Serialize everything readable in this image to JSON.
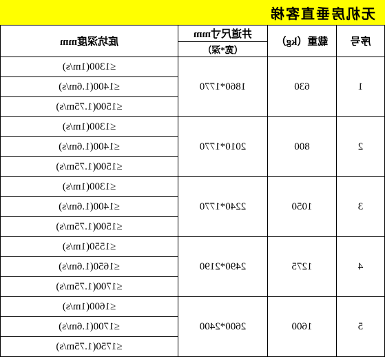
{
  "title": "无机房垂直客梯",
  "headers": {
    "seq": "序号",
    "load": "载重（kg）",
    "shaft_top": "井道尺寸mm",
    "shaft_sub": "（宽*深）",
    "pit": "底坑深度mm"
  },
  "rows": [
    {
      "seq": "1",
      "load": "630",
      "shaft": "1860*1770",
      "pits": [
        "≤1300(1m/s)",
        "≤1400(1.6m/s)",
        "≤1500(1.75m/s)"
      ]
    },
    {
      "seq": "2",
      "load": "800",
      "shaft": "2010*1770",
      "pits": [
        "≤1300(1m/s)",
        "≤1400(1.6m/s)",
        "≤1500(1.75m/s)"
      ]
    },
    {
      "seq": "3",
      "load": "1050",
      "shaft": "2240*1770",
      "pits": [
        "≤1300(1m/s)",
        "≤1400(1.6m/s)",
        "≤1500(1.75m/s)"
      ]
    },
    {
      "seq": "4",
      "load": "1275",
      "shaft": "2490*2190",
      "pits": [
        "≤1550(1m/s)",
        "≤1650(1.6m/s)",
        "≤1700(1.75m/s)"
      ]
    },
    {
      "seq": "5",
      "load": "1600",
      "shaft": "2600*2400",
      "pits": [
        "≤1600(1m/s)",
        "≤1700(1.6m/s)",
        "≤1750(1.75m/s)"
      ]
    }
  ]
}
